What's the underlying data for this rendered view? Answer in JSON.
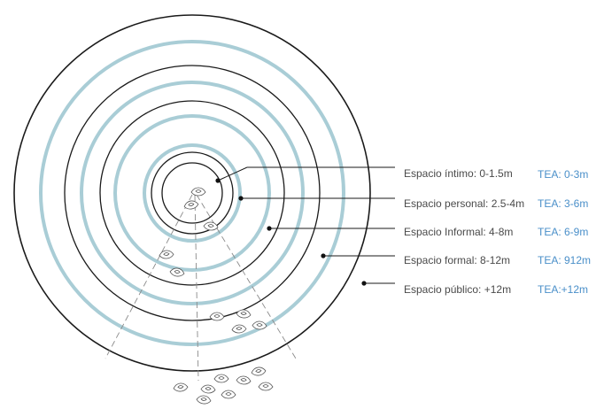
{
  "zones": [
    {
      "label": "Espacio íntimo: 0-1.5m",
      "tea": "TEA: 0-3m"
    },
    {
      "label": "Espacio personal: 2.5-4m",
      "tea": "TEA: 3-6m"
    },
    {
      "label": "Espacio Informal: 4-8m",
      "tea": "TEA: 6-9m"
    },
    {
      "label": "Espacio formal: 8-12m",
      "tea": "TEA: 912m"
    },
    {
      "label": "Espacio público: +12m",
      "tea": "TEA:+12m"
    }
  ],
  "colors": {
    "ring_blue": "#a9cdd6",
    "ring_black": "#1a1a1a",
    "tea_text": "#4a8fc9",
    "zone_text": "#4a4a4a"
  },
  "icons": {
    "person": "person-top-view-icon"
  }
}
